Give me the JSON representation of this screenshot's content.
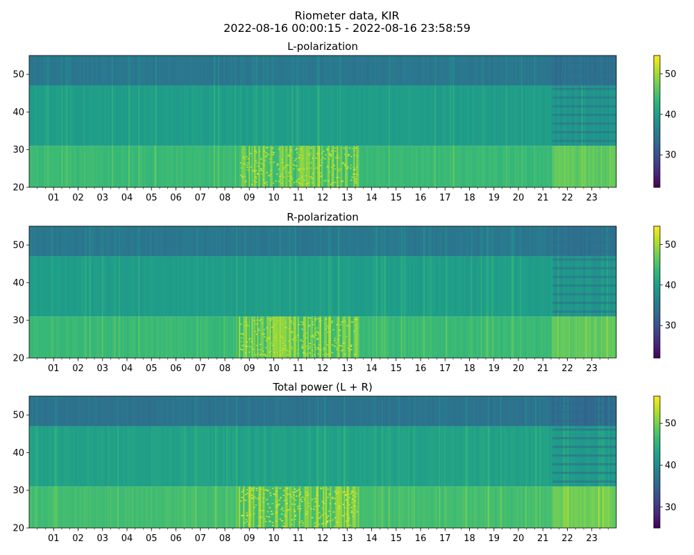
{
  "figure": {
    "title_line1": "Riometer data, KIR",
    "title_line2": "2022-08-16 00:00:15 - 2022-08-16 23:58:59"
  },
  "chart_data": [
    {
      "type": "heatmap",
      "title": "L-polarization",
      "x_ticks": [
        "01",
        "02",
        "03",
        "04",
        "05",
        "06",
        "07",
        "08",
        "09",
        "10",
        "11",
        "12",
        "13",
        "14",
        "15",
        "16",
        "17",
        "18",
        "19",
        "20",
        "21",
        "22",
        "23"
      ],
      "x_range_hours": [
        0,
        24
      ],
      "ylim": [
        20,
        55
      ],
      "y_ticks": [
        20,
        30,
        40,
        50
      ],
      "colorbar": {
        "ticks": [
          30,
          40,
          50
        ],
        "range": [
          22,
          54.5
        ],
        "colormap": "viridis"
      },
      "bands": [
        {
          "y_range": [
            47,
            55
          ],
          "value": 35
        },
        {
          "y_range": [
            31,
            47
          ],
          "value": 40
        },
        {
          "y_range": [
            20,
            31
          ],
          "value": 44
        }
      ],
      "after_hour": 21.4
    },
    {
      "type": "heatmap",
      "title": "R-polarization",
      "x_ticks": [
        "01",
        "02",
        "03",
        "04",
        "05",
        "06",
        "07",
        "08",
        "09",
        "10",
        "11",
        "12",
        "13",
        "14",
        "15",
        "16",
        "17",
        "18",
        "19",
        "20",
        "21",
        "22",
        "23"
      ],
      "x_range_hours": [
        0,
        24
      ],
      "ylim": [
        20,
        55
      ],
      "y_ticks": [
        20,
        30,
        40,
        50
      ],
      "colorbar": {
        "ticks": [
          30,
          40,
          50
        ],
        "range": [
          22,
          54.5
        ],
        "colormap": "viridis"
      },
      "bands": [
        {
          "y_range": [
            47,
            55
          ],
          "value": 35
        },
        {
          "y_range": [
            31,
            47
          ],
          "value": 40
        },
        {
          "y_range": [
            20,
            31
          ],
          "value": 44
        }
      ],
      "after_hour": 21.4
    },
    {
      "type": "heatmap",
      "title": "Total power (L + R)",
      "x_ticks": [
        "01",
        "02",
        "03",
        "04",
        "05",
        "06",
        "07",
        "08",
        "09",
        "10",
        "11",
        "12",
        "13",
        "14",
        "15",
        "16",
        "17",
        "18",
        "19",
        "20",
        "21",
        "22",
        "23"
      ],
      "x_range_hours": [
        0,
        24
      ],
      "ylim": [
        20,
        55
      ],
      "y_ticks": [
        20,
        30,
        40,
        50
      ],
      "colorbar": {
        "ticks": [
          30,
          40,
          50
        ],
        "range": [
          25,
          56.5
        ],
        "colormap": "viridis"
      },
      "bands": [
        {
          "y_range": [
            47,
            55
          ],
          "value": 37
        },
        {
          "y_range": [
            31,
            47
          ],
          "value": 43
        },
        {
          "y_range": [
            20,
            31
          ],
          "value": 47
        }
      ],
      "after_hour": 21.4
    }
  ]
}
